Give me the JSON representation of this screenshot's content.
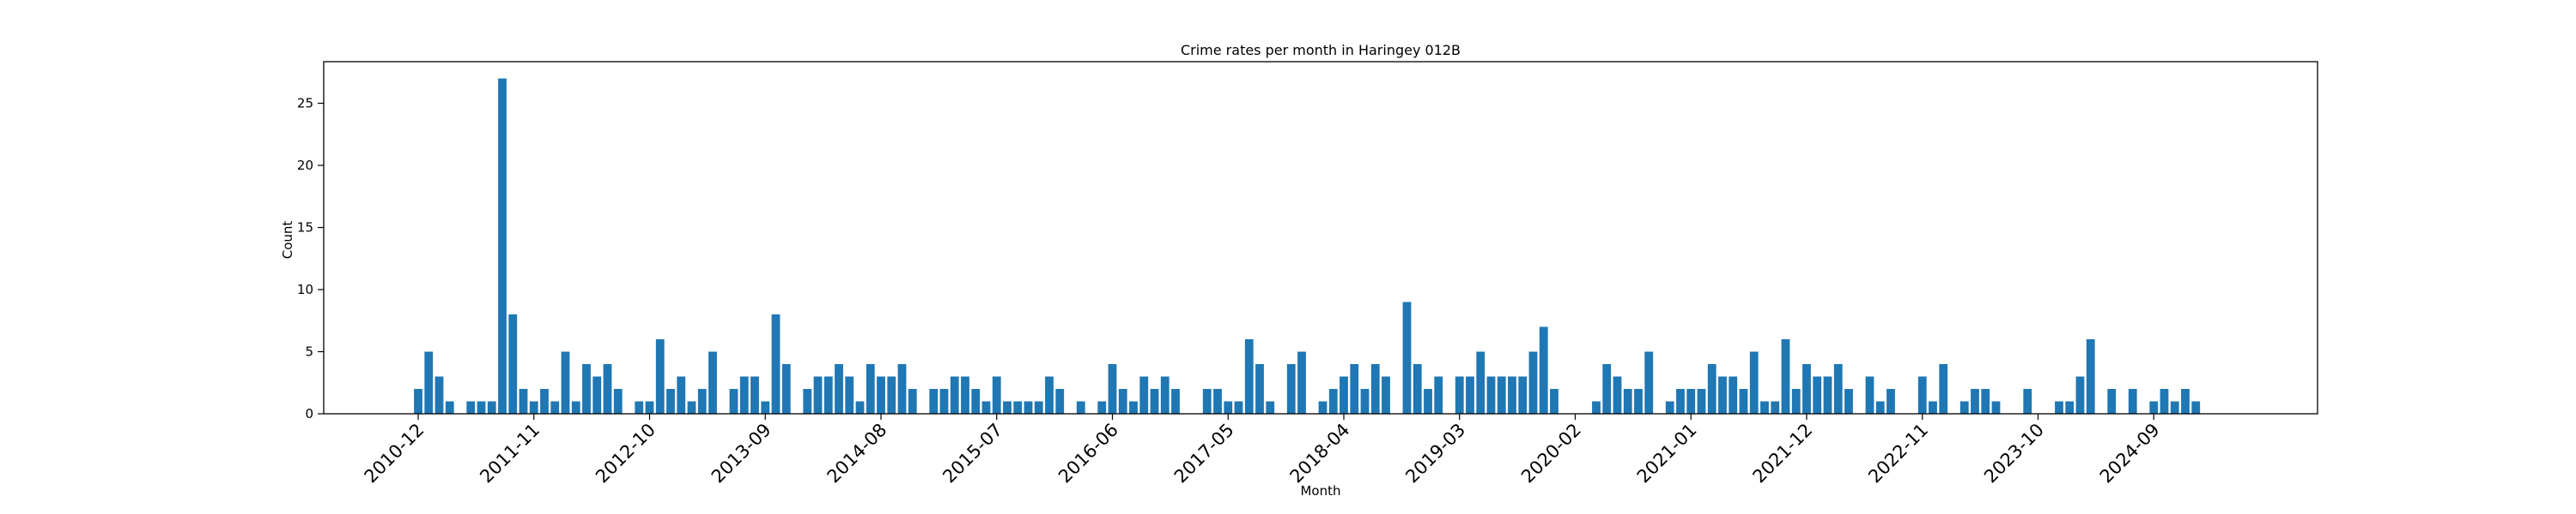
{
  "chart_data": {
    "type": "bar",
    "title": "Crime rates per month in Haringey 012B",
    "xlabel": "Month",
    "ylabel": "Count",
    "ylim": [
      0,
      28.35
    ],
    "yticks": [
      0,
      5,
      10,
      15,
      20,
      25
    ],
    "bar_color": "#1f77b4",
    "grid": false,
    "start_month": "2010-12",
    "xtick_labels": [
      "2010-12",
      "2011-11",
      "2012-10",
      "2013-09",
      "2014-08",
      "2015-07",
      "2016-06",
      "2017-05",
      "2018-04",
      "2019-03",
      "2020-02",
      "2021-01",
      "2021-12",
      "2022-11",
      "2023-10",
      "2024-09"
    ],
    "values": [
      2,
      5,
      3,
      1,
      0,
      1,
      1,
      1,
      27,
      8,
      2,
      1,
      2,
      1,
      5,
      1,
      4,
      3,
      4,
      2,
      0,
      1,
      1,
      6,
      2,
      3,
      1,
      2,
      5,
      0,
      2,
      3,
      3,
      1,
      8,
      4,
      0,
      2,
      3,
      3,
      4,
      3,
      1,
      4,
      3,
      3,
      4,
      2,
      0,
      2,
      2,
      3,
      3,
      2,
      1,
      3,
      1,
      1,
      1,
      1,
      3,
      2,
      0,
      1,
      0,
      1,
      4,
      2,
      1,
      3,
      2,
      3,
      2,
      0,
      0,
      2,
      2,
      1,
      1,
      6,
      4,
      1,
      0,
      4,
      5,
      0,
      1,
      2,
      3,
      4,
      2,
      4,
      3,
      0,
      9,
      4,
      2,
      3,
      0,
      3,
      3,
      5,
      3,
      3,
      3,
      3,
      5,
      7,
      2,
      0,
      0,
      0,
      1,
      4,
      3,
      2,
      2,
      5,
      0,
      1,
      2,
      2,
      2,
      4,
      3,
      3,
      2,
      5,
      1,
      1,
      6,
      2,
      4,
      3,
      3,
      4,
      2,
      0,
      3,
      1,
      2,
      0,
      0,
      3,
      1,
      4,
      0,
      1,
      2,
      2,
      1,
      0,
      0,
      2,
      0,
      0,
      1,
      1,
      3,
      6,
      0,
      2,
      0,
      2,
      0,
      1,
      2,
      1,
      2,
      1
    ]
  }
}
